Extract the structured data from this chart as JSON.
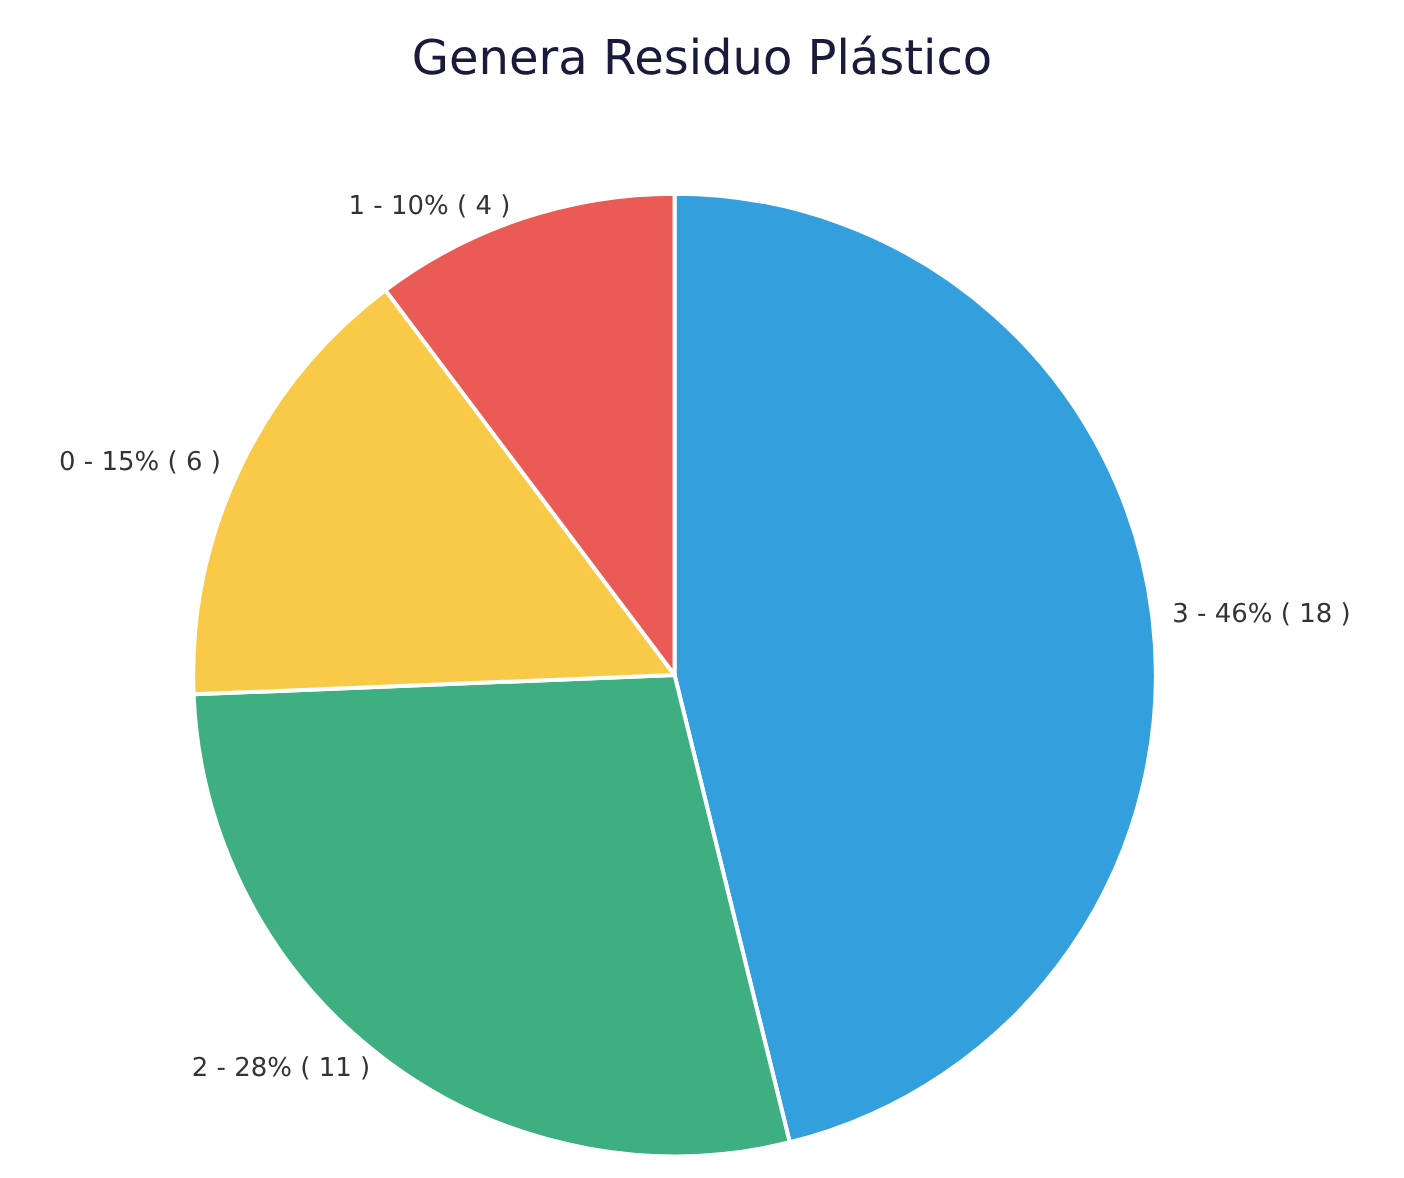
{
  "chart_data": {
    "type": "pie",
    "title": "Genera Residuo Plástico",
    "categories": [
      "3 - 46% ( 18 )",
      "2 - 28% ( 11 )",
      "0 - 15% ( 6 )",
      "1 - 10% ( 4 )"
    ],
    "values": [
      18,
      11,
      6,
      4
    ],
    "colors": [
      "#339fdd",
      "#3daf80",
      "#f9ca48",
      "#eb5b55"
    ],
    "legend": false
  }
}
